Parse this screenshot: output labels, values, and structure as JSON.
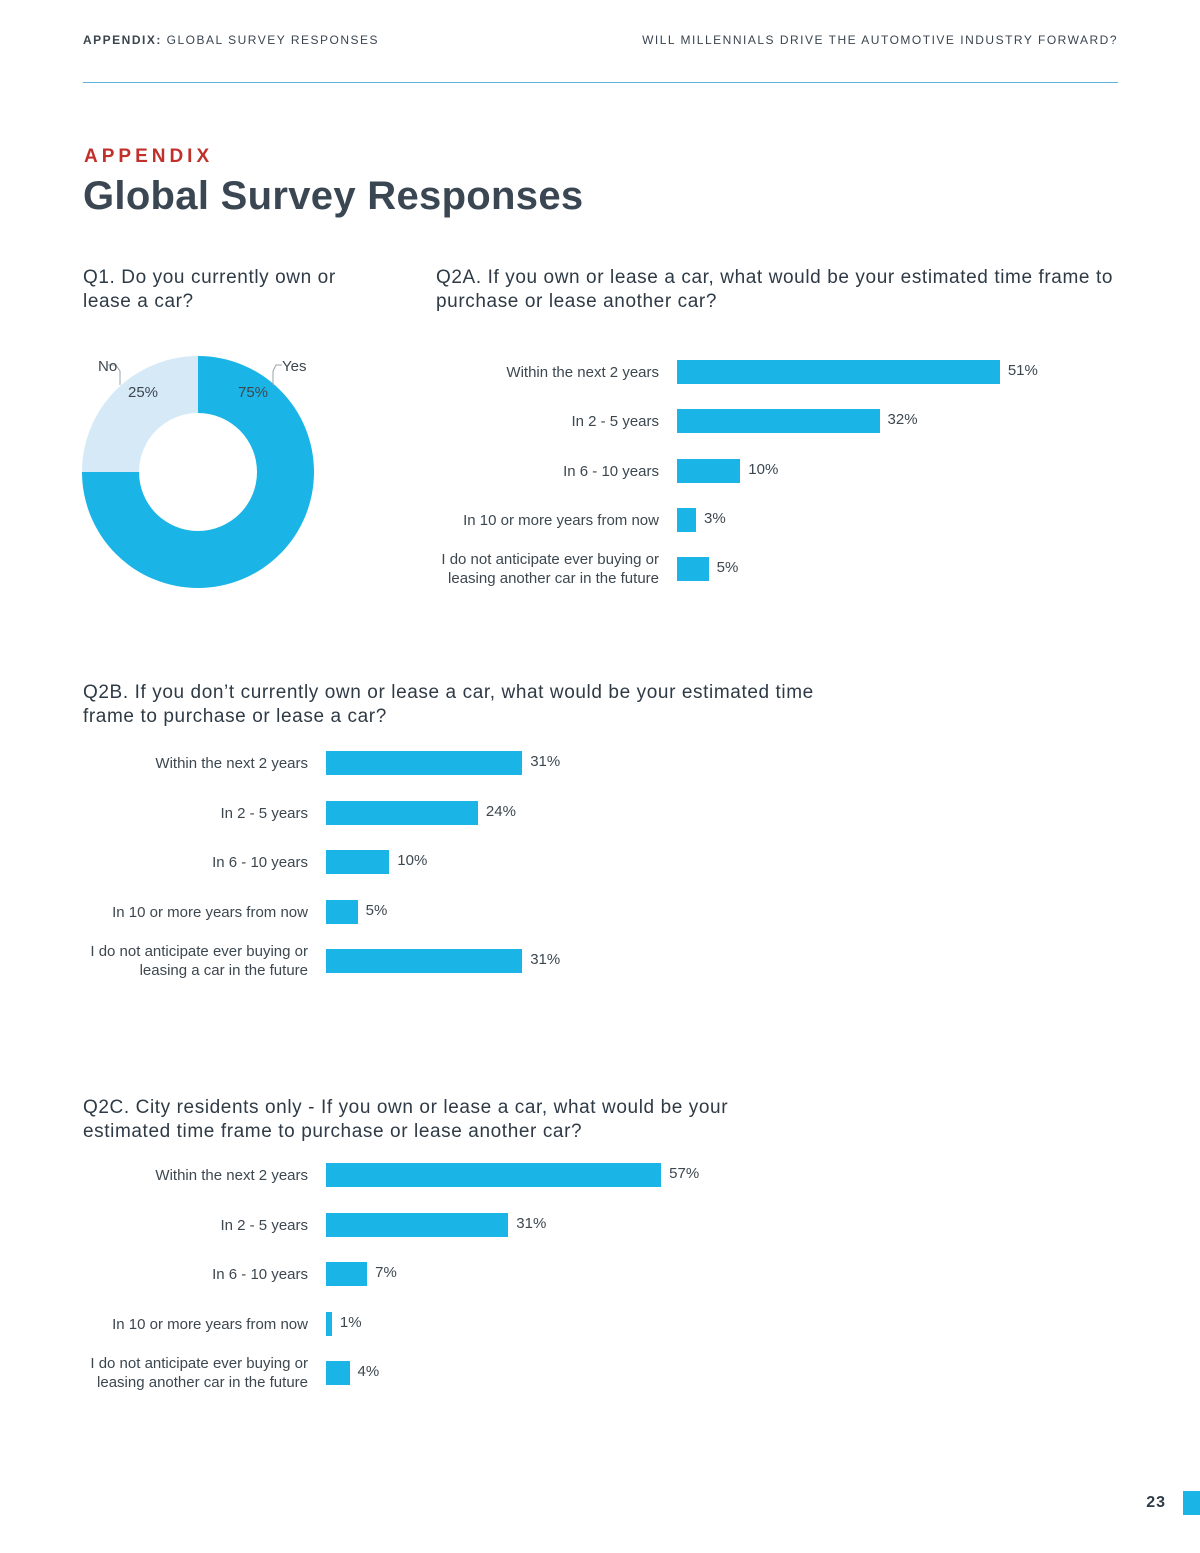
{
  "header": {
    "left_bold": "APPENDIX:",
    "left_rest": " GLOBAL SURVEY RESPONSES",
    "right": "WILL MILLENNIALS DRIVE THE AUTOMOTIVE INDUSTRY FORWARD?"
  },
  "page": {
    "kicker": "APPENDIX",
    "title": "Global Survey Responses",
    "number": "23"
  },
  "colors": {
    "bar": "#1ab4e6",
    "pie_light": "#d6e9f7",
    "accent_red": "#c0312b"
  },
  "chart_data": [
    {
      "type": "pie",
      "title": "Q1. Do you currently own or lease a car?",
      "categories": [
        "No",
        "Yes"
      ],
      "values": [
        25,
        75
      ],
      "value_labels": [
        "25%",
        "75%"
      ]
    },
    {
      "type": "bar",
      "title": "Q2A. If you own or lease a car, what would be your estimated time frame to purchase or lease another car?",
      "categories": [
        "Within the next 2 years",
        "In 2 - 5 years",
        "In 6 - 10 years",
        "In 10 or more years from now",
        "I do not anticipate ever buying or leasing another car in the future"
      ],
      "values": [
        51,
        32,
        10,
        3,
        5
      ],
      "value_labels": [
        "51%",
        "32%",
        "10%",
        "3%",
        "5%"
      ]
    },
    {
      "type": "bar",
      "title": "Q2B. If you don’t currently own or lease a car, what would be your estimated time frame to purchase or lease a car?",
      "categories": [
        "Within the next 2 years",
        "In 2 - 5 years",
        "In 6 - 10 years",
        "In 10 or more years from now",
        "I do not anticipate ever buying or leasing a car in the future"
      ],
      "values": [
        31,
        24,
        10,
        5,
        31
      ],
      "value_labels": [
        "31%",
        "24%",
        "10%",
        "5%",
        "31%"
      ]
    },
    {
      "type": "bar",
      "title": "Q2C. City residents only - If you own or lease a car, what would be your estimated time frame to purchase or lease another car?",
      "categories": [
        "Within the next 2 years",
        "In 2 - 5 years",
        "In 6 - 10 years",
        "In 10 or more years from now",
        "I do not anticipate ever buying or leasing another car in the future"
      ],
      "values": [
        57,
        31,
        7,
        1,
        4
      ],
      "value_labels": [
        "57%",
        "31%",
        "7%",
        "1%",
        "4%"
      ]
    }
  ]
}
